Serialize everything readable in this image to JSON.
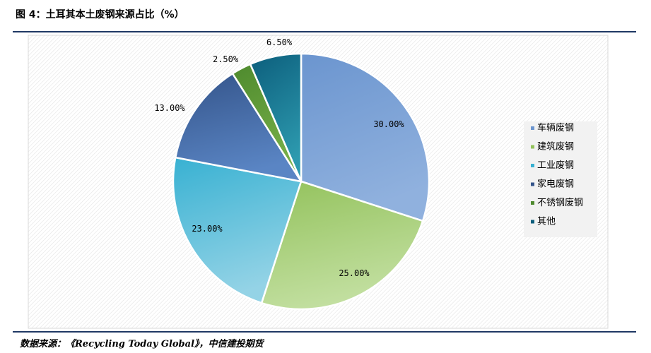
{
  "header": {
    "title": "图 4：土耳其本土废钢来源占比（%）"
  },
  "footer": {
    "source": "数据来源：《Recycling Today Global》，中信建投期货"
  },
  "chart_data": {
    "type": "pie",
    "unit": "%",
    "slices": [
      {
        "name": "车辆废钢",
        "value": 30.0,
        "label": "30.00%",
        "color": "#6b95cf",
        "color_light": "#90b1de"
      },
      {
        "name": "建筑废钢",
        "value": 25.0,
        "label": "25.00%",
        "color": "#93c25c",
        "color_light": "#c2dfa0"
      },
      {
        "name": "工业废钢",
        "value": 23.0,
        "label": "23.00%",
        "color": "#38b1d2",
        "color_light": "#94d3e6"
      },
      {
        "name": "家电废钢",
        "value": 13.0,
        "label": "13.00%",
        "color": "#34548a",
        "color_light": "#5a85c4"
      },
      {
        "name": "不锈钢废钢",
        "value": 2.5,
        "label": "2.50%",
        "color": "#4e8a2e",
        "color_light": "#78b048"
      },
      {
        "name": "其他",
        "value": 6.5,
        "label": "6.50%",
        "color": "#0c5e7c",
        "color_light": "#2d9aaf"
      }
    ],
    "legend_position": "right",
    "start_angle_deg": 0,
    "direction": "clockwise",
    "background_pattern": "diagonal-hatch"
  }
}
